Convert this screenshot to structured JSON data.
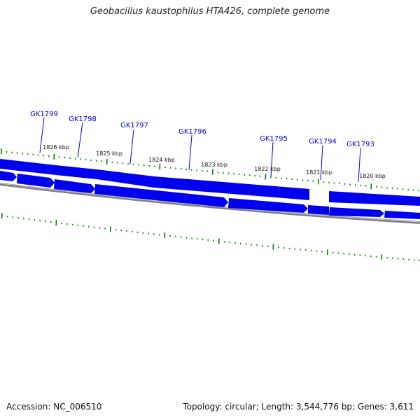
{
  "title": "Geobacillus kaustophilus HTA426, complete genome",
  "footer": {
    "accession": "Accession: NC_006510",
    "summary": "Topology: circular; Length: 3,544,776 bp; Genes: 3,611"
  },
  "colors": {
    "gene": "#0000ee",
    "gene_label": "#0000cc",
    "backbone": "#808080",
    "tick": "#008000",
    "scale_label": "#111111"
  },
  "scale_labels": [
    "1826 kbp",
    "1825 kbp",
    "1824 kbp",
    "1823 kbp",
    "1822 kbp",
    "1821 kbp",
    "1820 kbp"
  ],
  "gene_labels": [
    "GK1799",
    "GK1798",
    "GK1797",
    "GK1796",
    "GK1795",
    "GK1794",
    "GK1793"
  ]
}
